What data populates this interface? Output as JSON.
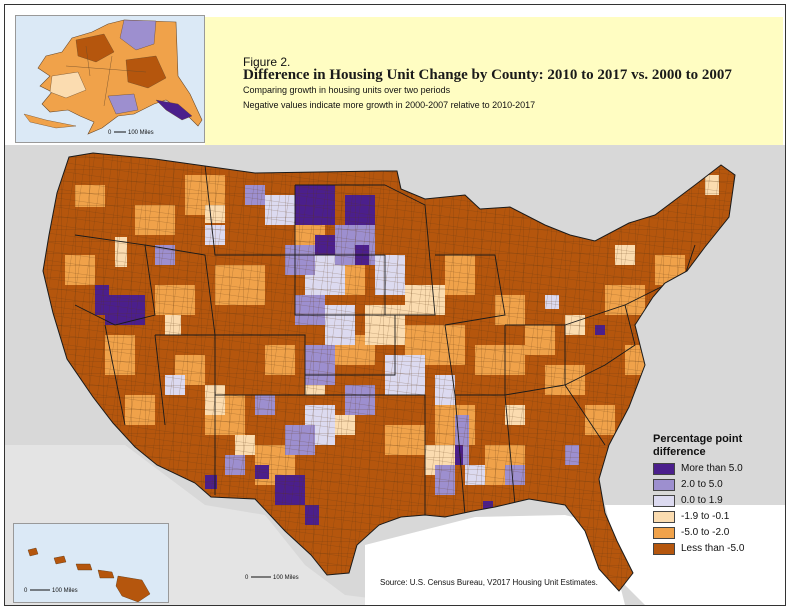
{
  "figure_label": "Figure 2.",
  "title": "Difference in Housing Unit Change by County: 2010 to 2017 vs. 2000 to 2007",
  "subtitle": "Comparing growth in housing units over two periods",
  "note": "Negative values indicate more growth in 2000-2007 relative to 2010-2017",
  "legend": {
    "title_line1": "Percentage point",
    "title_line2": "difference",
    "items": [
      {
        "label": "More than 5.0",
        "color": "#4b1f8c"
      },
      {
        "label": "2.0 to 5.0",
        "color": "#9d8fcf"
      },
      {
        "label": "0.0 to 1.9",
        "color": "#dcdaf0"
      },
      {
        "label": "-1.9 to -0.1",
        "color": "#fbdcb0"
      },
      {
        "label": "-5.0 to -2.0",
        "color": "#f0a24a"
      },
      {
        "label": "Less than -5.0",
        "color": "#b5560d"
      }
    ]
  },
  "scale_bars": {
    "alaska": {
      "start": "0",
      "label": "100 Miles"
    },
    "hawaii": {
      "start": "0",
      "label": "100 Miles"
    },
    "conus": {
      "start": "0",
      "label": "100 Miles"
    }
  },
  "source": "Source: U.S. Census Bureau, V2017 Housing Unit Estimates."
}
